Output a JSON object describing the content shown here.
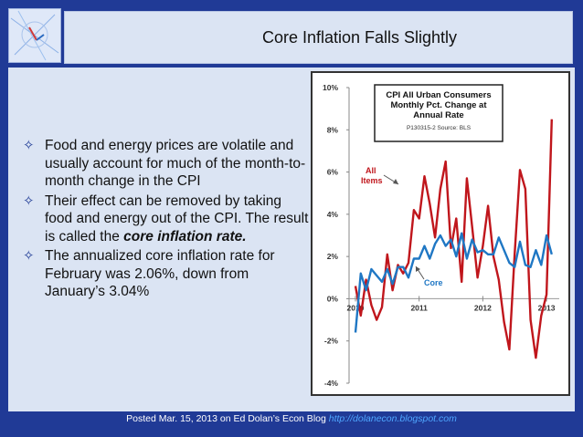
{
  "slide": {
    "title": "Core Inflation Falls Slightly",
    "bullets": [
      {
        "text": "Food and energy prices are volatile and usually account for much of the month-to-month change in the CPI"
      },
      {
        "text_before": "Their effect can be removed by taking food and energy out of the CPI. The result is called the ",
        "emphasis": "core inflation rate."
      },
      {
        "text": "The annualized core inflation rate for February was 2.06%, down from January’s 3.04%"
      }
    ],
    "footer": {
      "text": "Posted Mar. 15, 2013 on Ed Dolan’s Econ Blog ",
      "link": "http://dolanecon.blogspot.com"
    },
    "colors": {
      "background": "#203a96",
      "panel": "#dbe4f3",
      "all_items": "#c0161c",
      "core": "#1f77c4"
    }
  },
  "chart_data": {
    "type": "line",
    "title_lines": [
      "CPI All Urban Consumers",
      "Monthly Pct. Change at",
      "Annual Rate"
    ],
    "subtitle": "P130315-2 Source: BLS",
    "y_ticks": [
      "10%",
      "8%",
      "6%",
      "4%",
      "2%",
      "0%",
      "-2%",
      "-4%"
    ],
    "ylim": [
      -4,
      10
    ],
    "x_ticks": [
      "2010",
      "2011",
      "2012",
      "2013"
    ],
    "xlim": [
      2009.9,
      2013.2
    ],
    "annotations": [
      {
        "text": "All"
      },
      {
        "text": "Items"
      },
      {
        "text": "Core"
      }
    ],
    "series": [
      {
        "name": "All Items",
        "x": [
          2010.0,
          2010.083,
          2010.167,
          2010.25,
          2010.333,
          2010.417,
          2010.5,
          2010.583,
          2010.667,
          2010.75,
          2010.833,
          2010.917,
          2011.0,
          2011.083,
          2011.167,
          2011.25,
          2011.333,
          2011.417,
          2011.5,
          2011.583,
          2011.667,
          2011.75,
          2011.833,
          2011.917,
          2012.0,
          2012.083,
          2012.167,
          2012.25,
          2012.333,
          2012.417,
          2012.5,
          2012.583,
          2012.667,
          2012.75,
          2012.833,
          2012.917,
          2013.0,
          2013.083
        ],
        "values": [
          0.6,
          -0.8,
          0.9,
          -0.3,
          -1.0,
          -0.4,
          2.1,
          0.4,
          1.6,
          1.2,
          1.7,
          4.2,
          3.8,
          5.8,
          4.5,
          2.9,
          5.2,
          6.5,
          2.4,
          3.8,
          0.8,
          5.7,
          3.4,
          1.0,
          2.5,
          4.4,
          2.0,
          0.9,
          -1.1,
          -2.4,
          2.1,
          6.1,
          5.2,
          -1.0,
          -2.8,
          -0.8,
          0.2,
          8.5
        ]
      },
      {
        "name": "Core",
        "x": [
          2010.0,
          2010.083,
          2010.167,
          2010.25,
          2010.333,
          2010.417,
          2010.5,
          2010.583,
          2010.667,
          2010.75,
          2010.833,
          2010.917,
          2011.0,
          2011.083,
          2011.167,
          2011.25,
          2011.333,
          2011.417,
          2011.5,
          2011.583,
          2011.667,
          2011.75,
          2011.833,
          2011.917,
          2012.0,
          2012.083,
          2012.167,
          2012.25,
          2012.333,
          2012.417,
          2012.5,
          2012.583,
          2012.667,
          2012.75,
          2012.833,
          2012.917,
          2013.0,
          2013.083
        ],
        "values": [
          -1.6,
          1.2,
          0.4,
          1.4,
          1.1,
          0.8,
          1.4,
          0.7,
          1.5,
          1.5,
          1.0,
          1.9,
          1.9,
          2.5,
          1.9,
          2.6,
          3.0,
          2.5,
          2.8,
          2.0,
          3.1,
          1.9,
          2.8,
          2.2,
          2.3,
          2.1,
          2.1,
          2.9,
          2.3,
          1.7,
          1.5,
          2.7,
          1.6,
          1.5,
          2.3,
          1.6,
          3.0,
          2.1
        ]
      }
    ],
    "grid": false,
    "legend": "none (inline labels)"
  }
}
